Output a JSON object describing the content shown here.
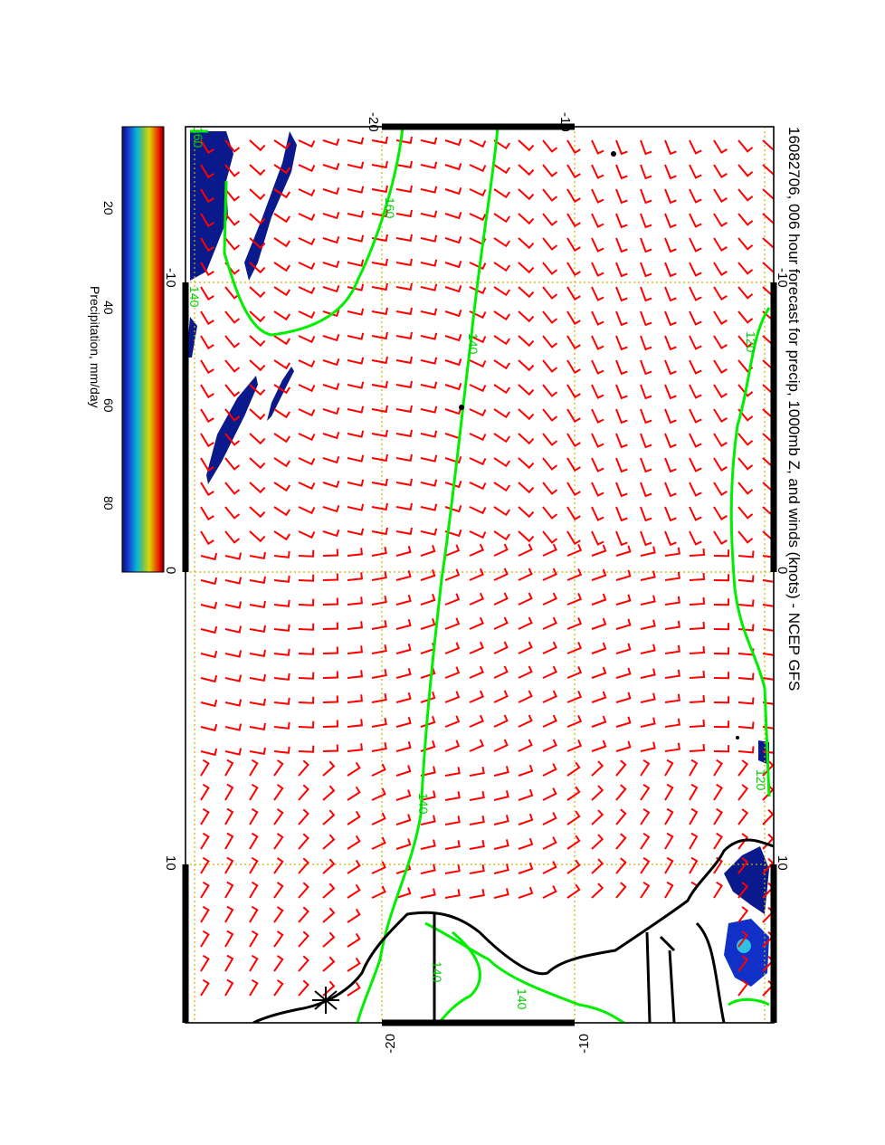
{
  "title": "16082706, 006 hour forecast for precip, 1000mb Z, and winds (knots) - NCEP GFS",
  "colorbar": {
    "label": "Precipitation, mm/day",
    "ticks": [
      "20",
      "40",
      "60",
      "80"
    ]
  },
  "lat_ticks": [
    "-20",
    "-10"
  ],
  "lon_ticks": [
    "-10",
    "0",
    "10"
  ],
  "contour_labels": [
    "160",
    "140",
    "120",
    "140",
    "140",
    "140",
    "160",
    "140",
    "120"
  ],
  "colors": {
    "barb": "#ff0000",
    "contour": "#00ff00",
    "coast": "#000000",
    "grid": "#ccb200",
    "precip_low": "#0a1a8c"
  }
}
